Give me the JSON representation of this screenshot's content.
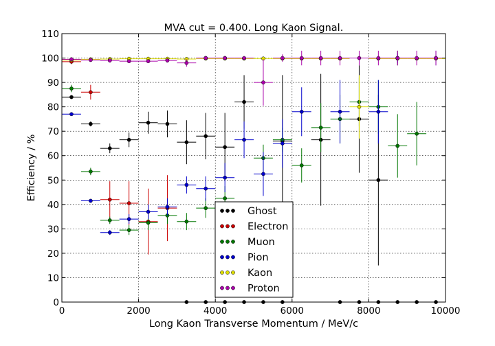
{
  "chart_data": {
    "type": "scatter",
    "title": "MVA cut = 0.400. Long Kaon Signal.",
    "xlabel": "Long Kaon Transverse Momentum / MeV/c",
    "ylabel": "Efficiency / %",
    "xlim": [
      0,
      10000
    ],
    "ylim": [
      0,
      110
    ],
    "xticks": [
      0,
      2000,
      4000,
      6000,
      8000,
      10000
    ],
    "yticks": [
      0,
      10,
      20,
      30,
      40,
      50,
      60,
      70,
      80,
      90,
      100,
      110
    ],
    "grid": true,
    "bin_half_width": 250,
    "legend_position": "lower-center",
    "series": [
      {
        "name": "Ghost",
        "color": "#000000",
        "points": [
          {
            "x": 250,
            "y": 84,
            "err": 0.8
          },
          {
            "x": 750,
            "y": 73,
            "err": 1
          },
          {
            "x": 1250,
            "y": 63,
            "err": 2
          },
          {
            "x": 1750,
            "y": 66.5,
            "err": 3
          },
          {
            "x": 2250,
            "y": 73.5,
            "err": 4.5
          },
          {
            "x": 2750,
            "y": 73,
            "err": 5.5
          },
          {
            "x": 3250,
            "y": 65.5,
            "err": 9
          },
          {
            "x": 3750,
            "y": 68,
            "err": 9.5
          },
          {
            "x": 4250,
            "y": 63.5,
            "err": 14
          },
          {
            "x": 4750,
            "y": 82,
            "err": 11
          },
          {
            "x": 5750,
            "y": 66,
            "err": 27
          },
          {
            "x": 6750,
            "y": 66.5,
            "err": 27
          },
          {
            "x": 7750,
            "y": 75,
            "err": 22
          },
          {
            "x": 8250,
            "y": 50,
            "err": 35
          },
          {
            "x": 3250,
            "y": 0,
            "err": 0
          },
          {
            "x": 3750,
            "y": 0,
            "err": 0
          },
          {
            "x": 4250,
            "y": 0,
            "err": 0
          },
          {
            "x": 4750,
            "y": 0,
            "err": 0
          },
          {
            "x": 5250,
            "y": 0,
            "err": 0
          },
          {
            "x": 5750,
            "y": 0,
            "err": 0
          },
          {
            "x": 7250,
            "y": 0,
            "err": 0
          },
          {
            "x": 7750,
            "y": 0,
            "err": 0
          },
          {
            "x": 8250,
            "y": 0,
            "err": 0
          },
          {
            "x": 8750,
            "y": 0,
            "err": 0
          },
          {
            "x": 9250,
            "y": 0,
            "err": 0
          },
          {
            "x": 9750,
            "y": 0,
            "err": 0
          },
          {
            "x": 3750,
            "y": 100,
            "err": 0
          },
          {
            "x": 4250,
            "y": 100,
            "err": 0
          },
          {
            "x": 8750,
            "y": 100,
            "err": 3
          }
        ]
      },
      {
        "name": "Electron",
        "color": "#cc0000",
        "points": [
          {
            "x": 250,
            "y": 98.5,
            "err": 1
          },
          {
            "x": 750,
            "y": 86,
            "err": 3
          },
          {
            "x": 1250,
            "y": 42,
            "err": 7.5
          },
          {
            "x": 1750,
            "y": 40.5,
            "err": 9
          },
          {
            "x": 2250,
            "y": 33,
            "err": 13.5
          },
          {
            "x": 2750,
            "y": 38.5,
            "err": 13.5
          }
        ]
      },
      {
        "name": "Muon",
        "color": "#007700",
        "points": [
          {
            "x": 250,
            "y": 87.5,
            "err": 1.5
          },
          {
            "x": 750,
            "y": 53.5,
            "err": 1.5
          },
          {
            "x": 1250,
            "y": 33.5,
            "err": 1.5
          },
          {
            "x": 1750,
            "y": 29.5,
            "err": 2
          },
          {
            "x": 2250,
            "y": 32.5,
            "err": 3
          },
          {
            "x": 2750,
            "y": 35.5,
            "err": 3.5
          },
          {
            "x": 3250,
            "y": 33,
            "err": 3.5
          },
          {
            "x": 3750,
            "y": 38.5,
            "err": 4
          },
          {
            "x": 4250,
            "y": 42.5,
            "err": 5
          },
          {
            "x": 5250,
            "y": 59,
            "err": 5.5
          },
          {
            "x": 5750,
            "y": 66.5,
            "err": 5
          },
          {
            "x": 6250,
            "y": 56,
            "err": 7
          },
          {
            "x": 6750,
            "y": 71.5,
            "err": 10
          },
          {
            "x": 7250,
            "y": 75,
            "err": 10
          },
          {
            "x": 7750,
            "y": 82,
            "err": 10
          },
          {
            "x": 8250,
            "y": 80,
            "err": 11
          },
          {
            "x": 8750,
            "y": 64,
            "err": 13
          },
          {
            "x": 9250,
            "y": 69,
            "err": 13
          }
        ]
      },
      {
        "name": "Pion",
        "color": "#0000cc",
        "points": [
          {
            "x": 250,
            "y": 77,
            "err": 0.5
          },
          {
            "x": 750,
            "y": 41.5,
            "err": 0.7
          },
          {
            "x": 1250,
            "y": 28.5,
            "err": 1
          },
          {
            "x": 1750,
            "y": 34,
            "err": 2
          },
          {
            "x": 2250,
            "y": 37,
            "err": 3
          },
          {
            "x": 2750,
            "y": 39,
            "err": 3.5
          },
          {
            "x": 3250,
            "y": 48,
            "err": 3.5
          },
          {
            "x": 3750,
            "y": 46.5,
            "err": 5
          },
          {
            "x": 4250,
            "y": 51,
            "err": 6
          },
          {
            "x": 4750,
            "y": 66.5,
            "err": 7.5
          },
          {
            "x": 5250,
            "y": 52.5,
            "err": 9
          },
          {
            "x": 5750,
            "y": 65,
            "err": 10
          },
          {
            "x": 6250,
            "y": 78,
            "err": 10
          },
          {
            "x": 7250,
            "y": 78,
            "err": 13
          },
          {
            "x": 8250,
            "y": 78,
            "err": 13
          },
          {
            "x": 8750,
            "y": 100,
            "err": 2
          },
          {
            "x": 9750,
            "y": 100,
            "err": 3
          }
        ]
      },
      {
        "name": "Kaon",
        "color": "#dddd00",
        "points": [
          {
            "x": 250,
            "y": 99.2,
            "err": 0.3
          },
          {
            "x": 750,
            "y": 99.5,
            "err": 0.3
          },
          {
            "x": 1250,
            "y": 99.6,
            "err": 0.3
          },
          {
            "x": 1750,
            "y": 99.7,
            "err": 0.3
          },
          {
            "x": 2250,
            "y": 99.7,
            "err": 0.3
          },
          {
            "x": 2750,
            "y": 99.7,
            "err": 0.3
          },
          {
            "x": 3250,
            "y": 99.6,
            "err": 0.3
          },
          {
            "x": 3750,
            "y": 99.8,
            "err": 0.3
          },
          {
            "x": 4250,
            "y": 99.8,
            "err": 0.3
          },
          {
            "x": 4750,
            "y": 99.8,
            "err": 0.3
          },
          {
            "x": 5250,
            "y": 99.8,
            "err": 0.3
          },
          {
            "x": 5750,
            "y": 99.8,
            "err": 0.3
          },
          {
            "x": 6250,
            "y": 99.8,
            "err": 0.3
          },
          {
            "x": 6750,
            "y": 99.8,
            "err": 0.3
          },
          {
            "x": 7250,
            "y": 99.8,
            "err": 0.3
          },
          {
            "x": 7750,
            "y": 80,
            "err": 13
          },
          {
            "x": 8250,
            "y": 99.8,
            "err": 0.5
          },
          {
            "x": 8750,
            "y": 99.8,
            "err": 0.5
          },
          {
            "x": 9250,
            "y": 99.8,
            "err": 0.5
          },
          {
            "x": 9750,
            "y": 99.8,
            "err": 0.5
          }
        ]
      },
      {
        "name": "Proton",
        "color": "#aa00aa",
        "points": [
          {
            "x": 250,
            "y": 99.5,
            "err": 0.3
          },
          {
            "x": 750,
            "y": 99.2,
            "err": 0.3
          },
          {
            "x": 1250,
            "y": 99,
            "err": 0.4
          },
          {
            "x": 1750,
            "y": 98.7,
            "err": 0.5
          },
          {
            "x": 2250,
            "y": 98.7,
            "err": 0.8
          },
          {
            "x": 2750,
            "y": 99,
            "err": 0.8
          },
          {
            "x": 3250,
            "y": 98,
            "err": 1.5
          },
          {
            "x": 3750,
            "y": 100,
            "err": 0.5
          },
          {
            "x": 4250,
            "y": 100,
            "err": 0.5
          },
          {
            "x": 4750,
            "y": 100,
            "err": 0.5
          },
          {
            "x": 5250,
            "y": 90,
            "err": 9.5
          },
          {
            "x": 5750,
            "y": 100,
            "err": 1.5
          },
          {
            "x": 6250,
            "y": 100,
            "err": 3
          },
          {
            "x": 6750,
            "y": 100,
            "err": 3
          },
          {
            "x": 7250,
            "y": 100,
            "err": 3
          },
          {
            "x": 7750,
            "y": 100,
            "err": 3
          },
          {
            "x": 8250,
            "y": 100,
            "err": 3
          },
          {
            "x": 8750,
            "y": 100,
            "err": 3
          },
          {
            "x": 9250,
            "y": 100,
            "err": 3
          },
          {
            "x": 9750,
            "y": 100,
            "err": 3
          }
        ]
      }
    ]
  }
}
